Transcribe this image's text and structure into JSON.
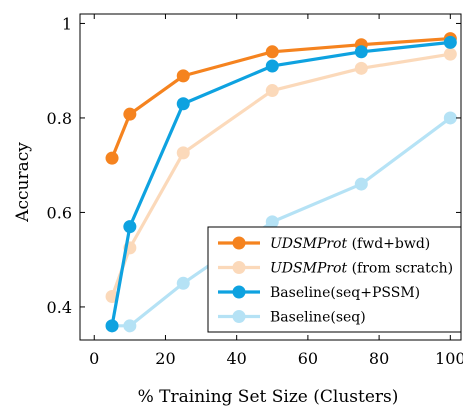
{
  "chart_data": {
    "type": "line",
    "xlabel": "% Training Set Size (Clusters)",
    "ylabel": "Accuracy",
    "xlim": [
      -4,
      103
    ],
    "ylim": [
      0.33,
      1.02
    ],
    "xticks": [
      "0",
      "20",
      "40",
      "60",
      "80",
      "100"
    ],
    "yticks": [
      "0.4",
      "0.6",
      "0.8",
      "1"
    ],
    "x": [
      5,
      10,
      25,
      50,
      75,
      100
    ],
    "legend_position": "lower-right",
    "series": [
      {
        "name": "UDSMProt (fwd+bwd)",
        "name_italic": "UDSMProt",
        "name_rest": " (fwd+bwd)",
        "values": [
          0.715,
          0.808,
          0.889,
          0.94,
          0.955,
          0.968
        ],
        "color": "#f5831f",
        "opacity": 1.0
      },
      {
        "name": "UDSMProt (from scratch)",
        "name_italic": "UDSMProt",
        "name_rest": " (from scratch)",
        "values": [
          0.422,
          0.525,
          0.726,
          0.858,
          0.905,
          0.935
        ],
        "color": "#f5831f",
        "opacity": 0.3
      },
      {
        "name": "Baseline(seq+PSSM)",
        "name_italic": "",
        "name_rest": "Baseline(seq+PSSM)",
        "values": [
          0.36,
          0.57,
          0.83,
          0.91,
          0.94,
          0.96
        ],
        "color": "#0ea2e0",
        "opacity": 1.0
      },
      {
        "name": "Baseline(seq)",
        "name_italic": "",
        "name_rest": "Baseline(seq)",
        "values": [
          0.36,
          0.36,
          0.45,
          0.58,
          0.66,
          0.8
        ],
        "color": "#0ea2e0",
        "opacity": 0.3
      }
    ]
  }
}
